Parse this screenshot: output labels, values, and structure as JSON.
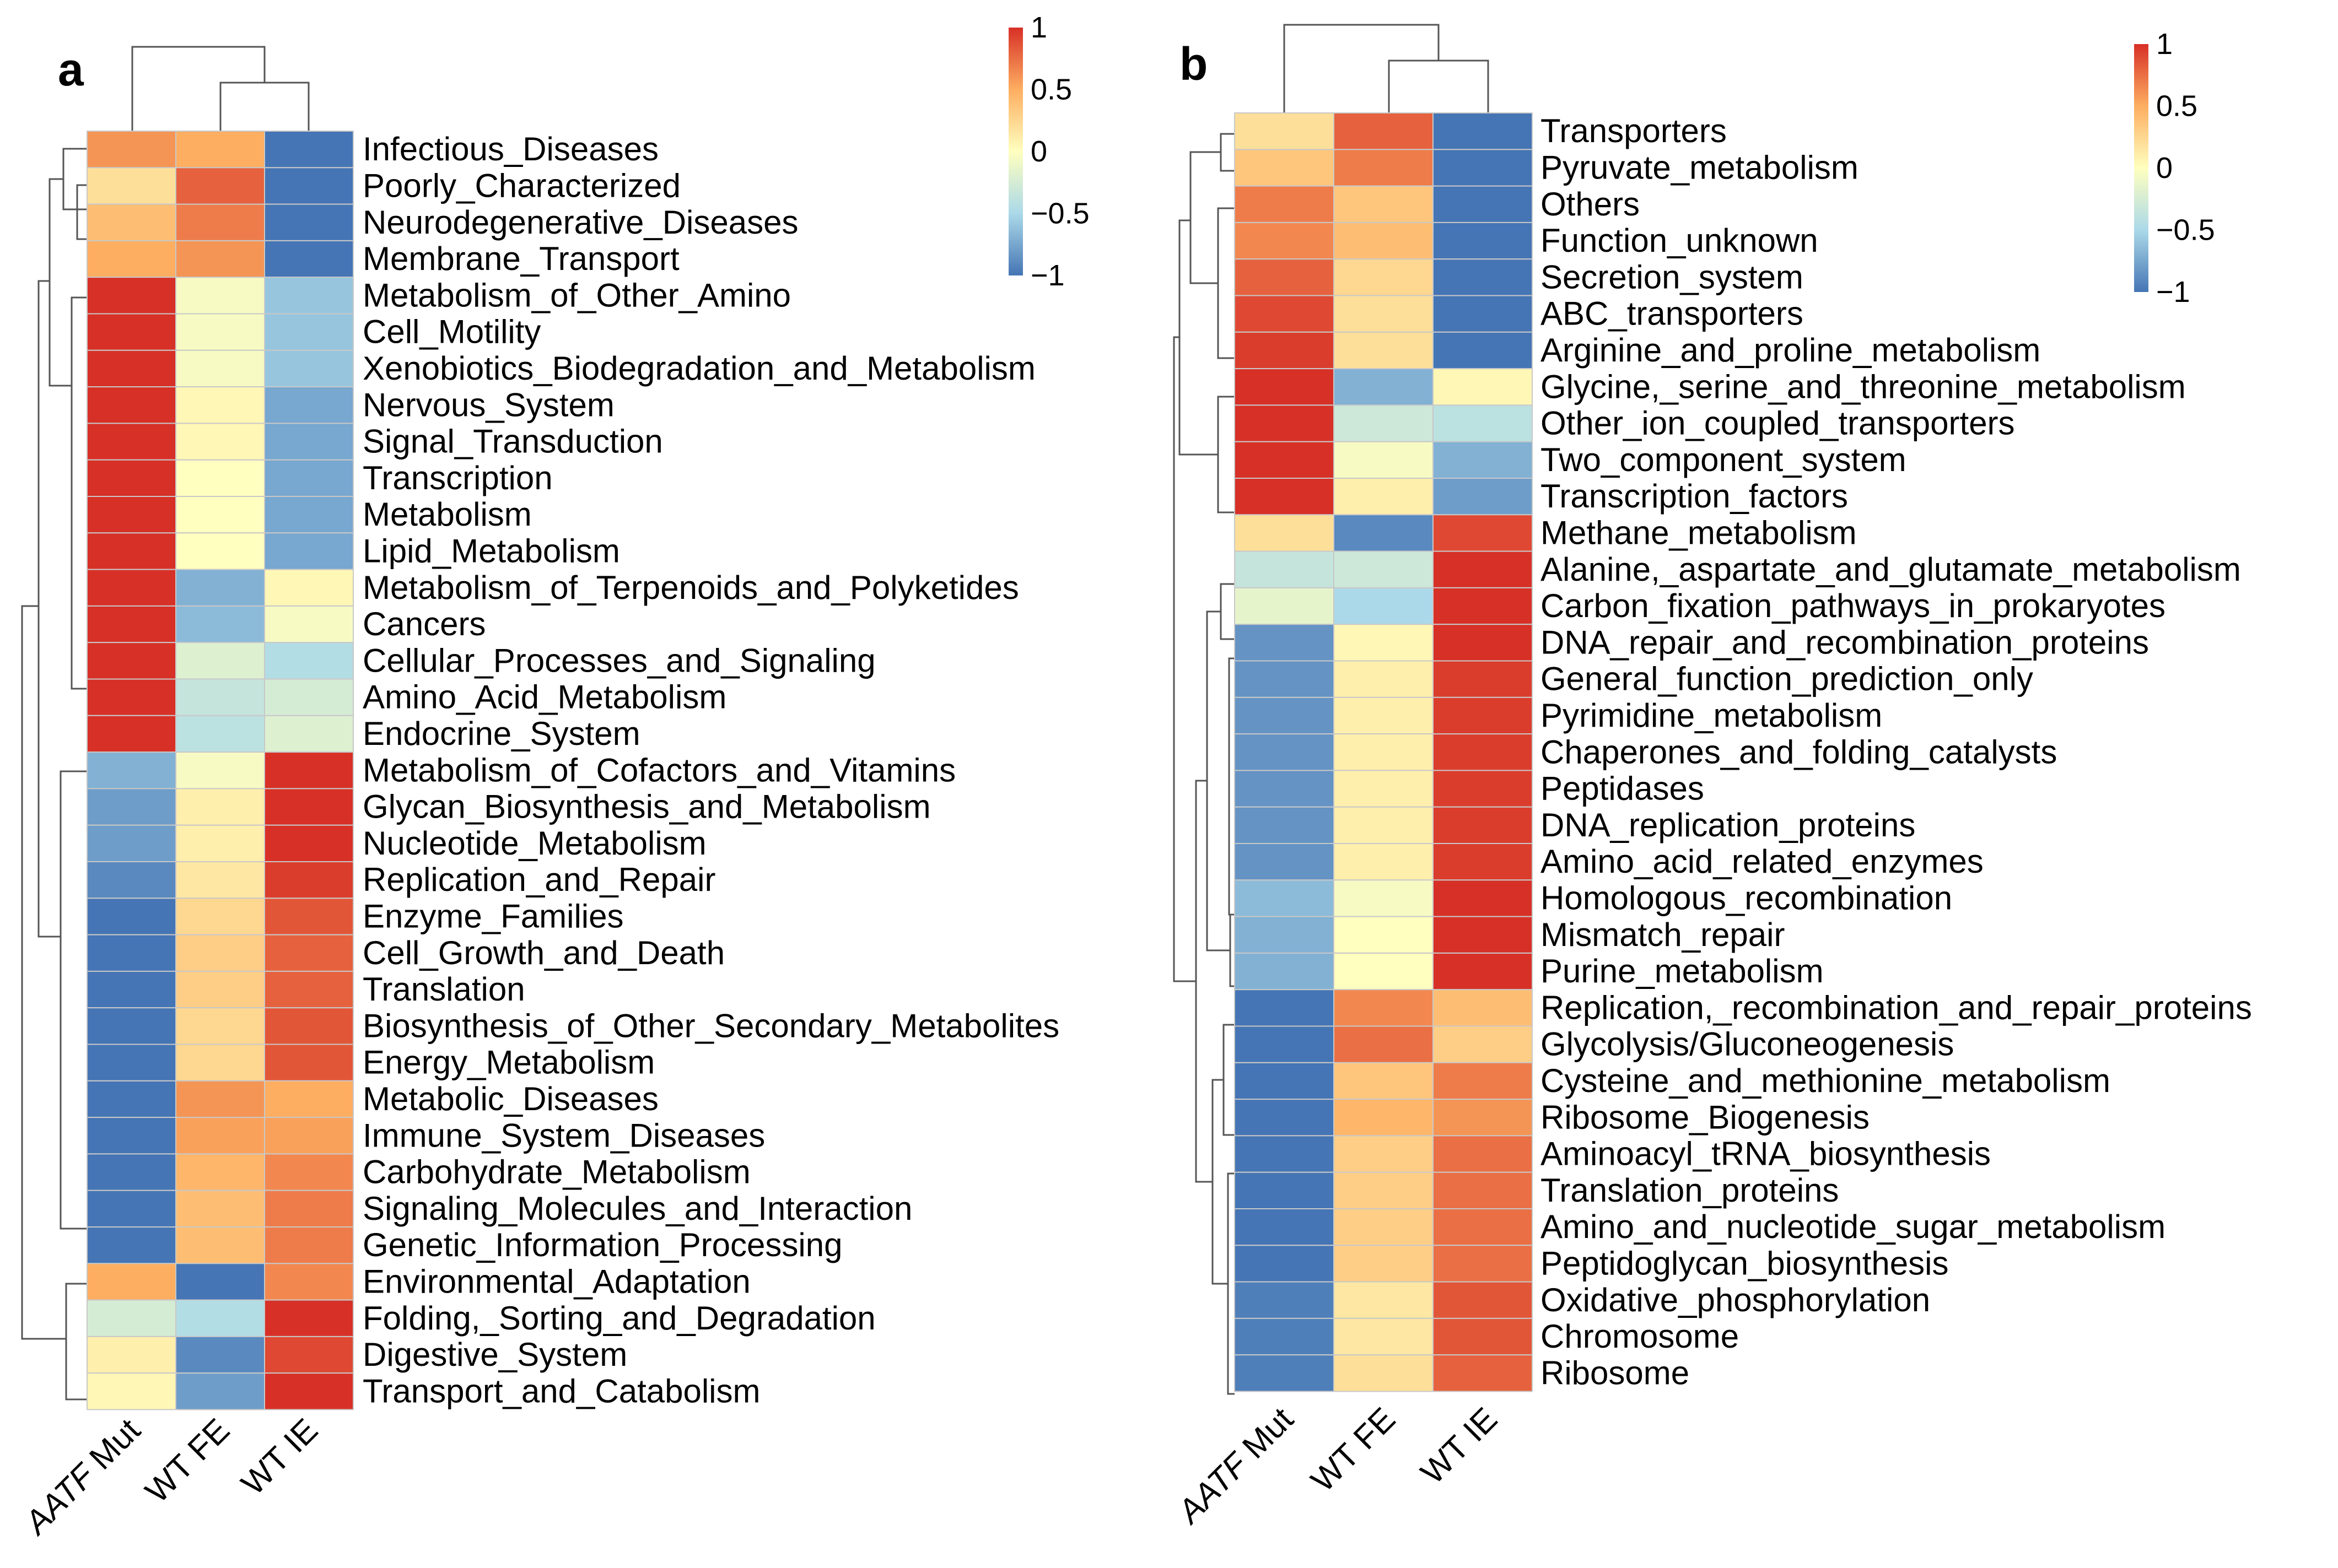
{
  "chart_data": [
    {
      "type": "heatmap",
      "panel": "a",
      "columns": [
        "AATF Mut",
        "WT FE",
        "WT IE"
      ],
      "rows": [
        "Infectious_Diseases",
        "Poorly_Characterized",
        "Neurodegenerative_Diseases",
        "Membrane_Transport",
        "Metabolism_of_Other_Amino",
        "Cell_Motility",
        "Xenobiotics_Biodegradation_and_Metabolism",
        "Nervous_System",
        "Signal_Transduction",
        "Transcription",
        "Metabolism",
        "Lipid_Metabolism",
        "Metabolism_of_Terpenoids_and_Polyketides",
        "Cancers",
        "Cellular_Processes_and_Signaling",
        "Amino_Acid_Metabolism",
        "Endocrine_System",
        "Metabolism_of_Cofactors_and_Vitamins",
        "Glycan_Biosynthesis_and_Metabolism",
        "Nucleotide_Metabolism",
        "Replication_and_Repair",
        "Enzyme_Families",
        "Cell_Growth_and_Death",
        "Translation",
        "Biosynthesis_of_Other_Secondary_Metabolites",
        "Energy_Metabolism",
        "Metabolic_Diseases",
        "Immune_System_Diseases",
        "Carbohydrate_Metabolism",
        "Signaling_Molecules_and_Interaction",
        "Genetic_Information_Processing",
        "Environmental_Adaptation",
        "Folding,_Sorting_and_Degradation",
        "Digestive_System",
        "Transport_and_Catabolism"
      ],
      "values": [
        [
          0.6,
          0.5,
          -1.1
        ],
        [
          0.2,
          0.8,
          -1.0
        ],
        [
          0.4,
          0.7,
          -1.05
        ],
        [
          0.5,
          0.6,
          -1.1
        ],
        [
          1.1,
          -0.05,
          -0.6
        ],
        [
          1.1,
          -0.05,
          -0.6
        ],
        [
          1.1,
          -0.05,
          -0.6
        ],
        [
          1.1,
          0.05,
          -0.75
        ],
        [
          1.1,
          0.05,
          -0.75
        ],
        [
          1.1,
          0.0,
          -0.75
        ],
        [
          1.1,
          0.0,
          -0.75
        ],
        [
          1.1,
          0.0,
          -0.75
        ],
        [
          1.1,
          -0.7,
          0.05
        ],
        [
          1.1,
          -0.65,
          -0.05
        ],
        [
          1.1,
          -0.2,
          -0.45
        ],
        [
          1.1,
          -0.35,
          -0.25
        ],
        [
          1.1,
          -0.4,
          -0.2
        ],
        [
          -0.7,
          -0.05,
          1.1
        ],
        [
          -0.8,
          0.1,
          1.0
        ],
        [
          -0.8,
          0.1,
          1.0
        ],
        [
          -0.9,
          0.15,
          0.95
        ],
        [
          -1.0,
          0.25,
          0.85
        ],
        [
          -1.0,
          0.3,
          0.8
        ],
        [
          -1.0,
          0.3,
          0.8
        ],
        [
          -1.0,
          0.25,
          0.85
        ],
        [
          -1.0,
          0.25,
          0.85
        ],
        [
          -1.0,
          0.6,
          0.5
        ],
        [
          -1.0,
          0.55,
          0.55
        ],
        [
          -1.0,
          0.45,
          0.65
        ],
        [
          -1.0,
          0.4,
          0.7
        ],
        [
          -1.0,
          0.4,
          0.7
        ],
        [
          0.5,
          -1.1,
          0.65
        ],
        [
          -0.25,
          -0.45,
          1.2
        ],
        [
          0.1,
          -0.9,
          0.9
        ],
        [
          0.05,
          -0.8,
          1.0
        ]
      ],
      "colorbar": {
        "ticks": [
          1,
          0.5,
          0,
          -0.5,
          -1
        ],
        "tick_labels": [
          "1",
          "0.5",
          "0",
          "−0.5",
          "−1"
        ],
        "range": [
          -1,
          1
        ]
      }
    },
    {
      "type": "heatmap",
      "panel": "b",
      "columns": [
        "AATF Mut",
        "WT FE",
        "WT IE"
      ],
      "rows": [
        "Transporters",
        "Pyruvate_metabolism",
        "Others",
        "Function_unknown",
        "Secretion_system",
        "ABC_transporters",
        "Arginine_and_proline_metabolism",
        "Glycine,_serine_and_threonine_metabolism",
        "Other_ion_coupled_transporters",
        "Two_component_system",
        "Transcription_factors",
        "Methane_metabolism",
        "Alanine,_aspartate_and_glutamate_metabolism",
        "Carbon_fixation_pathways_in_prokaryotes",
        "DNA_repair_and_recombination_proteins",
        "General_function_prediction_only",
        "Pyrimidine_metabolism",
        "Chaperones_and_folding_catalysts",
        "Peptidases",
        "DNA_replication_proteins",
        "Amino_acid_related_enzymes",
        "Homologous_recombination",
        "Mismatch_repair",
        "Purine_metabolism",
        "Replication,_recombination_and_repair_proteins",
        "Glycolysis/Gluconeogenesis",
        "Cysteine_and_methionine_metabolism",
        "Ribosome_Biogenesis",
        "Aminoacyl_tRNA_biosynthesis",
        "Translation_proteins",
        "Amino_and_nucleotide_sugar_metabolism",
        "Peptidoglycan_biosynthesis",
        "Oxidative_phosphorylation",
        "Chromosome",
        "Ribosome"
      ],
      "values": [
        [
          0.2,
          0.8,
          -1.0
        ],
        [
          0.35,
          0.7,
          -1.05
        ],
        [
          0.7,
          0.35,
          -1.05
        ],
        [
          0.65,
          0.4,
          -1.05
        ],
        [
          0.8,
          0.25,
          -1.05
        ],
        [
          0.9,
          0.2,
          -1.05
        ],
        [
          0.95,
          0.2,
          -1.05
        ],
        [
          1.05,
          -0.7,
          0.05
        ],
        [
          1.1,
          -0.3,
          -0.4
        ],
        [
          1.05,
          -0.05,
          -0.7
        ],
        [
          1.0,
          0.1,
          -0.8
        ],
        [
          0.2,
          -0.9,
          0.9
        ],
        [
          -0.35,
          -0.3,
          1.1
        ],
        [
          -0.15,
          -0.5,
          1.1
        ],
        [
          -0.85,
          0.05,
          1.0
        ],
        [
          -0.85,
          0.1,
          0.95
        ],
        [
          -0.85,
          0.1,
          0.95
        ],
        [
          -0.85,
          0.1,
          0.95
        ],
        [
          -0.85,
          0.1,
          0.95
        ],
        [
          -0.85,
          0.1,
          0.95
        ],
        [
          -0.85,
          0.1,
          0.95
        ],
        [
          -0.65,
          -0.05,
          1.1
        ],
        [
          -0.7,
          0.0,
          1.05
        ],
        [
          -0.7,
          0.0,
          1.05
        ],
        [
          -1.05,
          0.65,
          0.4
        ],
        [
          -1.05,
          0.75,
          0.3
        ],
        [
          -1.05,
          0.35,
          0.7
        ],
        [
          -1.05,
          0.45,
          0.6
        ],
        [
          -1.05,
          0.3,
          0.75
        ],
        [
          -1.05,
          0.3,
          0.75
        ],
        [
          -1.05,
          0.3,
          0.75
        ],
        [
          -1.05,
          0.3,
          0.75
        ],
        [
          -0.95,
          0.15,
          0.85
        ],
        [
          -0.95,
          0.15,
          0.85
        ],
        [
          -0.95,
          0.2,
          0.8
        ]
      ],
      "colorbar": {
        "ticks": [
          1,
          0.5,
          0,
          -0.5,
          -1
        ],
        "tick_labels": [
          "1",
          "0.5",
          "0",
          "−0.5",
          "−1"
        ],
        "range": [
          -1,
          1
        ]
      }
    }
  ],
  "panels": {
    "a": {
      "letter": "a"
    },
    "b": {
      "letter": "b"
    }
  },
  "colors": {
    "low": "#4575b4",
    "mid": "#ffffbf",
    "high": "#d73027"
  }
}
